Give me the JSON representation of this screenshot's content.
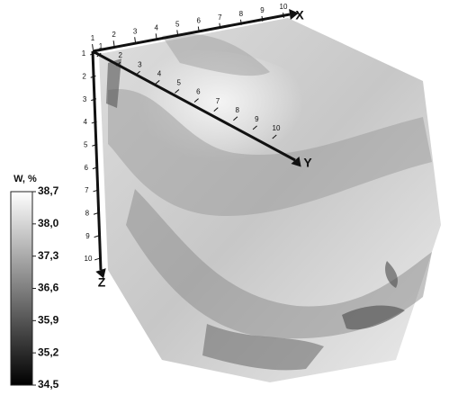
{
  "chart_data": {
    "type": "volume",
    "axes": [
      {
        "label": "X",
        "ticks": [
          1,
          2,
          3,
          4,
          5,
          6,
          7,
          8,
          9,
          10
        ]
      },
      {
        "label": "Y",
        "ticks": [
          1,
          2,
          3,
          4,
          5,
          6,
          7,
          8,
          9,
          10
        ]
      },
      {
        "label": "Z",
        "ticks": [
          1,
          2,
          3,
          4,
          5,
          6,
          7,
          8,
          9,
          10
        ]
      }
    ],
    "colorbar": {
      "title": "W, %",
      "clim": [
        34.5,
        38.7
      ],
      "ticks": [
        {
          "value": 38.7,
          "label": "38,7"
        },
        {
          "value": 38.0,
          "label": "38,0"
        },
        {
          "value": 37.3,
          "label": "37,3"
        },
        {
          "value": 36.6,
          "label": "36,6"
        },
        {
          "value": 35.9,
          "label": "35,9"
        },
        {
          "value": 35.2,
          "label": "35,2"
        },
        {
          "value": 34.5,
          "label": "34,5"
        }
      ]
    }
  }
}
